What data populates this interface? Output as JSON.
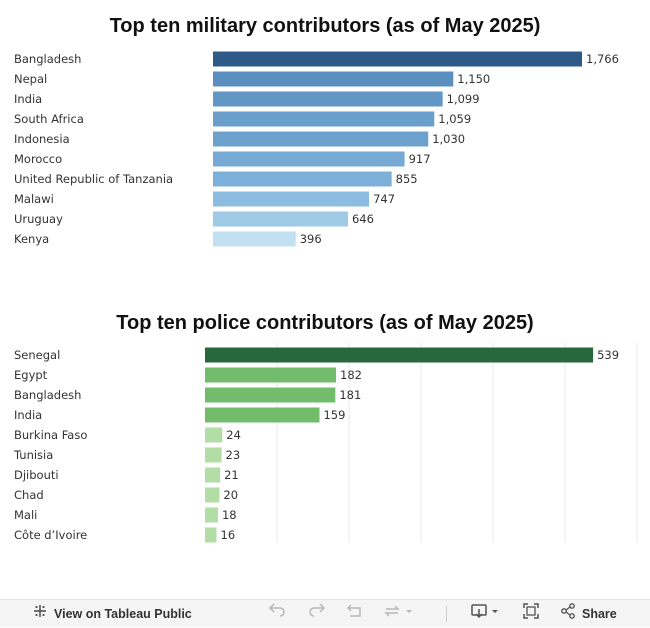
{
  "charts": {
    "military": {
      "title": "Top ten military contributors (as of May 2025)",
      "chart_data": {
        "type": "bar",
        "orientation": "horizontal",
        "title": "Top ten military contributors (as of May 2025)",
        "categories": [
          "Bangladesh",
          "Nepal",
          "India",
          "South Africa",
          "Indonesia",
          "Morocco",
          "United Republic of Tanzania",
          "Malawi",
          "Uruguay",
          "Kenya"
        ],
        "values": [
          1766,
          1150,
          1099,
          1059,
          1030,
          917,
          855,
          747,
          646,
          396
        ],
        "value_labels": [
          "1,766",
          "1,150",
          "1,099",
          "1,059",
          "1,030",
          "917",
          "855",
          "747",
          "646",
          "396"
        ],
        "colors": [
          "#2e5a8a",
          "#5b8fbf",
          "#6297c5",
          "#6a9ecb",
          "#6da1cd",
          "#76a9d4",
          "#7db0d8",
          "#8cbde0",
          "#9ecae6",
          "#c1e0f2"
        ],
        "xlim": [
          0,
          1766
        ]
      }
    },
    "police": {
      "title": "Top ten police contributors (as of May 2025)",
      "chart_data": {
        "type": "bar",
        "orientation": "horizontal",
        "title": "Top ten police contributors (as of May 2025)",
        "categories": [
          "Senegal",
          "Egypt",
          "Bangladesh",
          "India",
          "Burkina Faso",
          "Tunisia",
          "Djibouti",
          "Chad",
          "Mali",
          "Côte d’Ivoire"
        ],
        "values": [
          539,
          182,
          181,
          159,
          24,
          23,
          21,
          20,
          18,
          16
        ],
        "value_labels": [
          "539",
          "182",
          "181",
          "159",
          "24",
          "23",
          "21",
          "20",
          "18",
          "16"
        ],
        "colors": [
          "#27693a",
          "#72bc6b",
          "#72bc6b",
          "#72bc6b",
          "#b2dea5",
          "#b2dea5",
          "#b2dea5",
          "#b2dea5",
          "#b2dea5",
          "#b2dea5"
        ],
        "xlim": [
          0,
          600
        ],
        "gridlines": [
          100,
          200,
          300,
          400,
          500,
          600
        ]
      }
    }
  },
  "toolbar": {
    "view_label": "View on Tableau Public",
    "share_label": "Share",
    "icons": [
      "tableau-icon",
      "undo-icon",
      "redo-icon",
      "revert-icon",
      "refresh-icon",
      "download-icon",
      "fullscreen-icon",
      "share-icon"
    ]
  }
}
